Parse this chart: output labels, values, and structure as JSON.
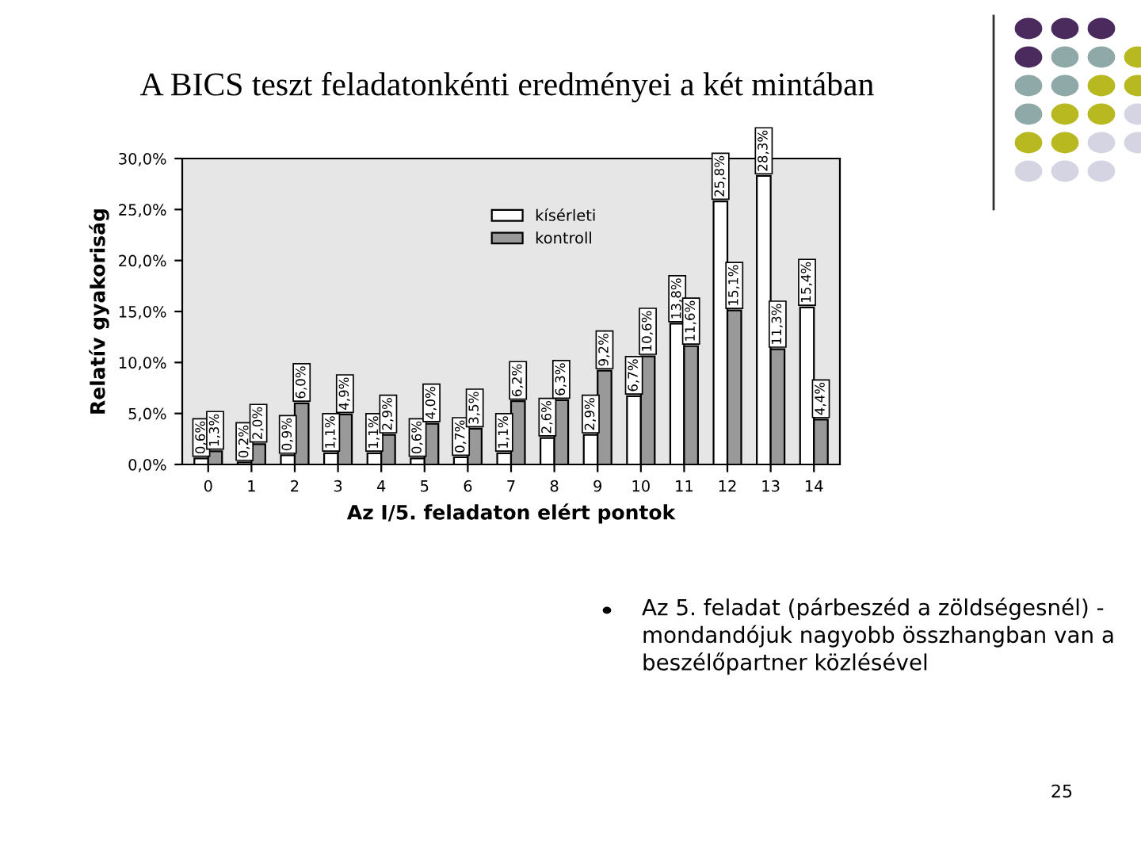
{
  "chart_data": {
    "type": "bar",
    "title": "A BICS teszt feladatonkénti eredményei a két mintában",
    "xlabel": "Az I/5. feladaton elért pontok",
    "ylabel": "Relatív gyakoriság",
    "categories": [
      "0",
      "1",
      "2",
      "3",
      "4",
      "5",
      "6",
      "7",
      "8",
      "9",
      "10",
      "11",
      "12",
      "13",
      "14"
    ],
    "series": [
      {
        "name": "kísérleti",
        "color": "#ffffff",
        "values": [
          0.6,
          0.2,
          0.9,
          1.1,
          1.1,
          0.6,
          0.7,
          1.1,
          2.6,
          2.9,
          6.7,
          13.8,
          25.8,
          28.3,
          15.4
        ],
        "value_labels": [
          "0,6%",
          "0,2%",
          "0,9%",
          "1,1%",
          "1,1%",
          "0,6%",
          "0,7%",
          "1,1%",
          "2,6%",
          "2,9%",
          "6,7%",
          "13,8%",
          "25,8%",
          "28,3%",
          "15,4%"
        ]
      },
      {
        "name": "kontroll",
        "color": "#999999",
        "values": [
          1.3,
          2.0,
          6.0,
          4.9,
          2.9,
          4.0,
          3.5,
          6.2,
          6.3,
          9.2,
          10.6,
          11.6,
          15.1,
          11.3,
          4.4
        ],
        "value_labels": [
          "1,3%",
          "2,0%",
          "6,0%",
          "4,9%",
          "2,9%",
          "4,0%",
          "3,5%",
          "6,2%",
          "6,3%",
          "9,2%",
          "10,6%",
          "11,6%",
          "15,1%",
          "11,3%",
          "4,4%"
        ]
      }
    ],
    "ylim": [
      0,
      30
    ],
    "yticks": [
      {
        "value": 0,
        "label": "0,0%"
      },
      {
        "value": 5,
        "label": "5,0%"
      },
      {
        "value": 10,
        "label": "10,0%"
      },
      {
        "value": 15,
        "label": "15,0%"
      },
      {
        "value": 20,
        "label": "20,0%"
      },
      {
        "value": 25,
        "label": "25,0%"
      },
      {
        "value": 30,
        "label": "30,0%"
      }
    ],
    "legend": "top",
    "annotations": [
      "Az 5. feladat (párbeszéd a zöldségesnél) - mondandójuk nagyobb összhangban van a beszélőpartner közlésével",
      "25"
    ]
  }
}
